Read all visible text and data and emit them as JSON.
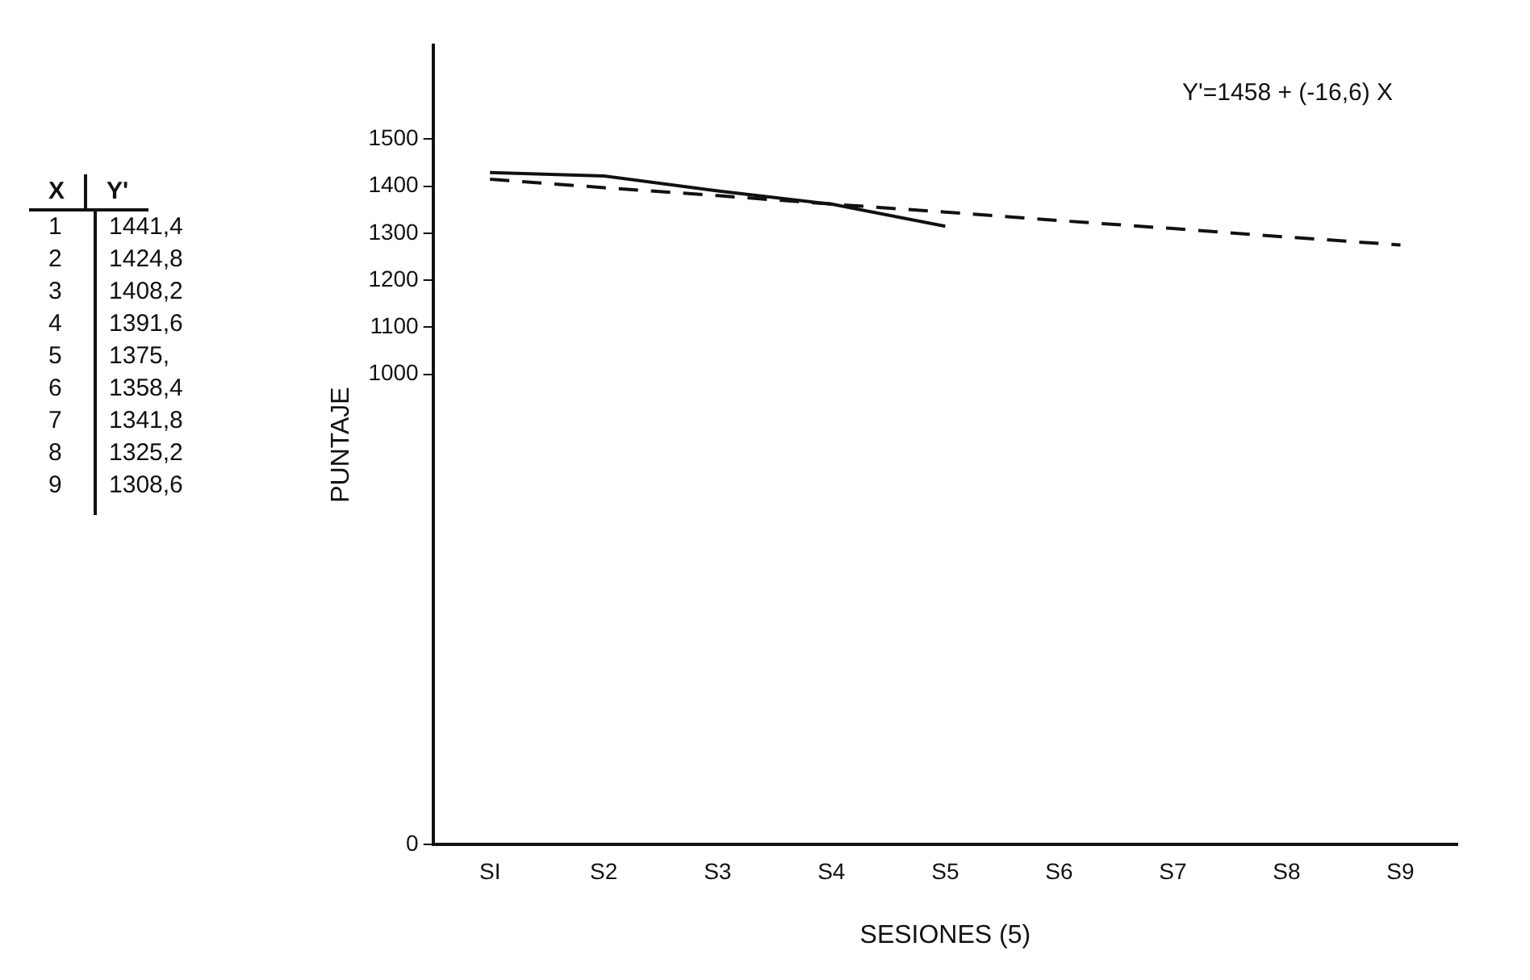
{
  "chart_data": [
    {
      "type": "other",
      "annotations": [
        "X",
        "Y'",
        "1",
        "1441,4",
        "2",
        "1424,8",
        "3",
        "1408,2",
        "4",
        "1391,6",
        "5",
        "1375,",
        "6",
        "1358,4",
        "7",
        "1341,8",
        "8",
        "1325,2",
        "9",
        "1308,6"
      ]
    },
    {
      "type": "line",
      "xlabel": "SESIONES (5)",
      "ylabel": "PUNTAJE",
      "categories": [
        "SI",
        "S2",
        "S3",
        "S4",
        "S5",
        "S6",
        "S7",
        "S8",
        "S9"
      ],
      "ylim": [
        0,
        1700
      ],
      "yticks": [
        0,
        1000,
        1100,
        1200,
        1300,
        1400,
        1500
      ],
      "series": [
        {
          "color": "#111111",
          "line_style": "solid",
          "values": [
            1429,
            1422,
            1390,
            1362,
            1315,
            null,
            null,
            null,
            null
          ]
        },
        {
          "color": "#111111",
          "line_style": "dashed",
          "values": [
            1415,
            1397,
            1380,
            1362,
            1345,
            1327,
            1310,
            1292,
            1275
          ]
        }
      ],
      "annotations": [
        "Y'=1458 + (-16,6) X"
      ],
      "grid": false,
      "legend": false,
      "marker": "none"
    }
  ]
}
